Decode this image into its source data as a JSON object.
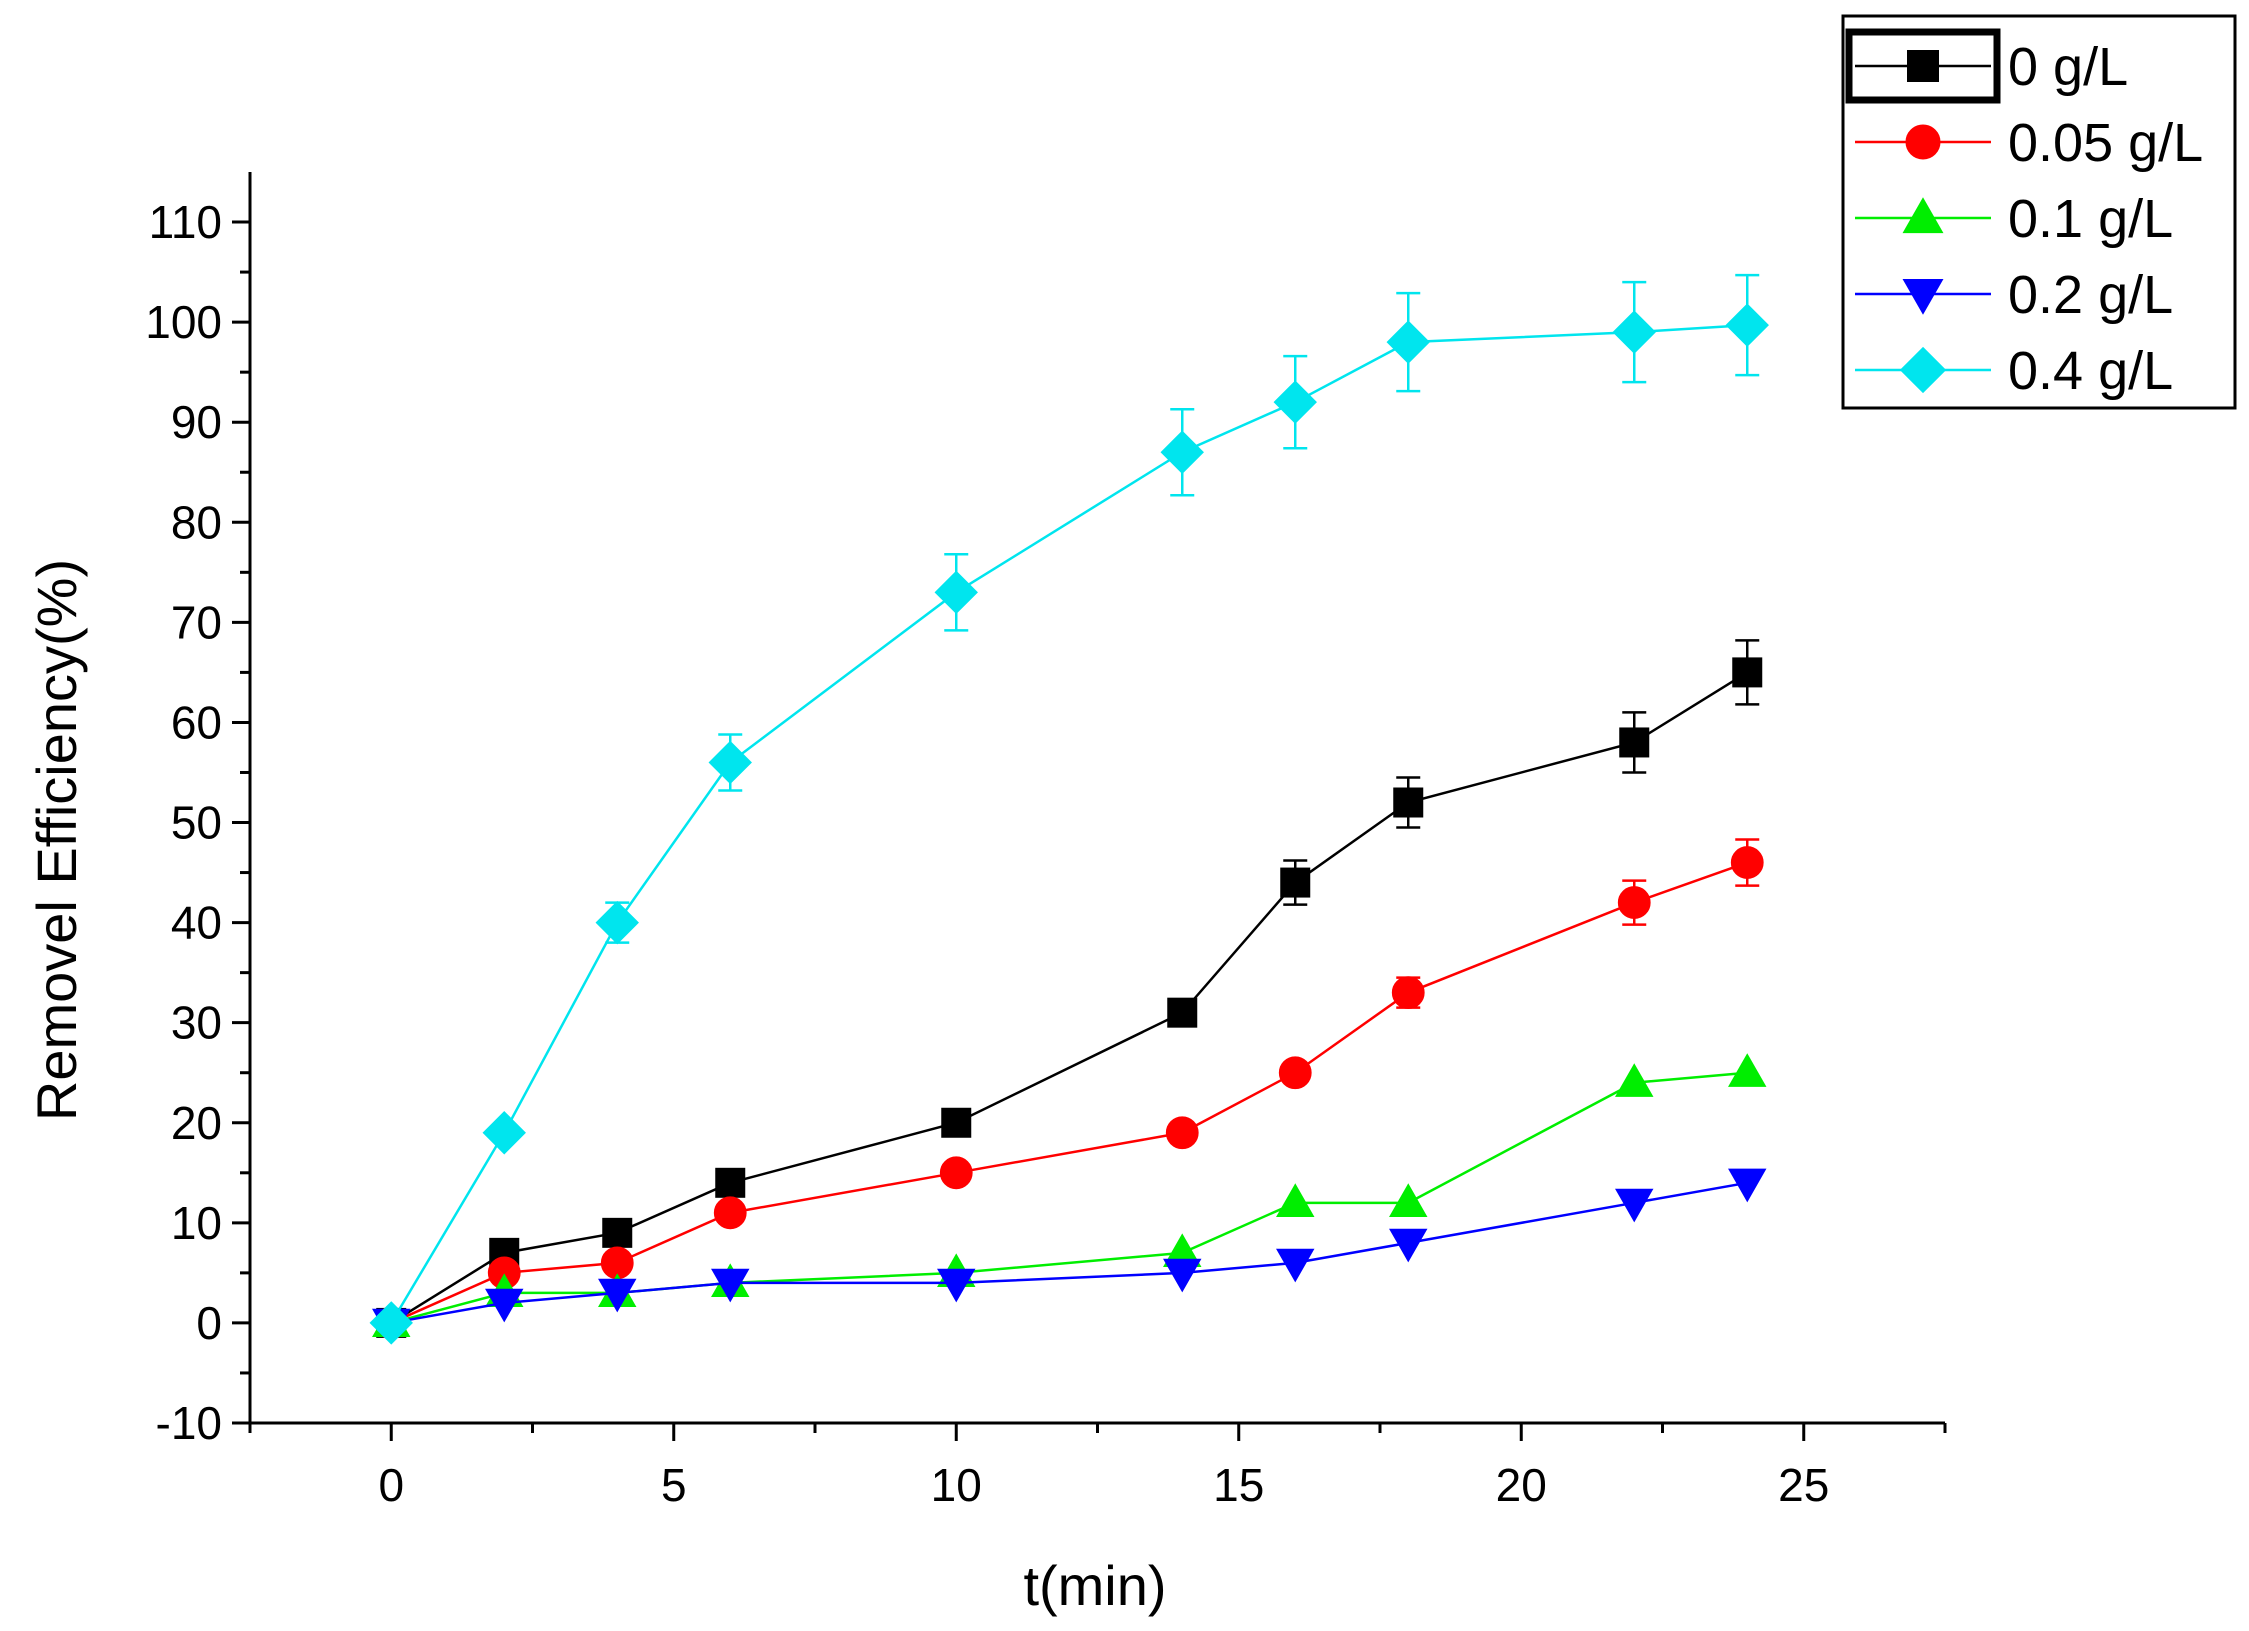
{
  "chart_data": {
    "type": "line",
    "title": "",
    "xlabel": "t(min)",
    "ylabel": "Removel Efficiency(%)",
    "xlim": [
      -2.5,
      27.5
    ],
    "ylim": [
      -10,
      115
    ],
    "x_ticks": [
      0,
      5,
      10,
      15,
      20,
      25
    ],
    "y_ticks": [
      -10,
      0,
      10,
      20,
      30,
      40,
      50,
      60,
      70,
      80,
      90,
      100,
      110
    ],
    "grid": false,
    "legend_position": "top-right",
    "x": [
      0,
      2,
      4,
      6,
      10,
      14,
      16,
      18,
      22,
      24
    ],
    "series": [
      {
        "name": "0 g/L",
        "color": "#000000",
        "marker": "square",
        "values": [
          0,
          7,
          9,
          14,
          20,
          31,
          44,
          52,
          58,
          65
        ],
        "errors": [
          0,
          0,
          0,
          0,
          0,
          1.2,
          2.2,
          2.5,
          3,
          3.2
        ]
      },
      {
        "name": "0.05 g/L",
        "color": "#ff0000",
        "marker": "circle",
        "values": [
          0,
          5,
          6,
          11,
          15,
          19,
          25,
          33,
          42,
          46
        ],
        "errors": [
          0,
          0,
          0,
          0,
          0,
          0,
          0,
          1.5,
          2.2,
          2.3
        ]
      },
      {
        "name": "0.1 g/L",
        "color": "#00ee00",
        "marker": "triangle-up",
        "values": [
          0,
          3,
          3,
          4,
          5,
          7,
          12,
          12,
          24,
          25
        ],
        "errors": [
          0,
          0,
          0,
          0,
          0,
          0,
          0,
          0,
          0,
          0
        ]
      },
      {
        "name": "0.2 g/L",
        "color": "#0000ff",
        "marker": "triangle-down",
        "values": [
          0,
          2,
          3,
          4,
          4,
          5,
          6,
          8,
          12,
          14
        ],
        "errors": [
          0,
          0,
          0,
          0,
          0,
          0,
          0,
          0,
          0,
          0
        ]
      },
      {
        "name": "0.4 g/L",
        "color": "#00e5ee",
        "marker": "diamond",
        "values": [
          0,
          19,
          40,
          56,
          73,
          87,
          92,
          98,
          99,
          99.7
        ],
        "errors": [
          0,
          0,
          2,
          2.8,
          3.8,
          4.3,
          4.6,
          4.9,
          5,
          5
        ]
      }
    ]
  }
}
